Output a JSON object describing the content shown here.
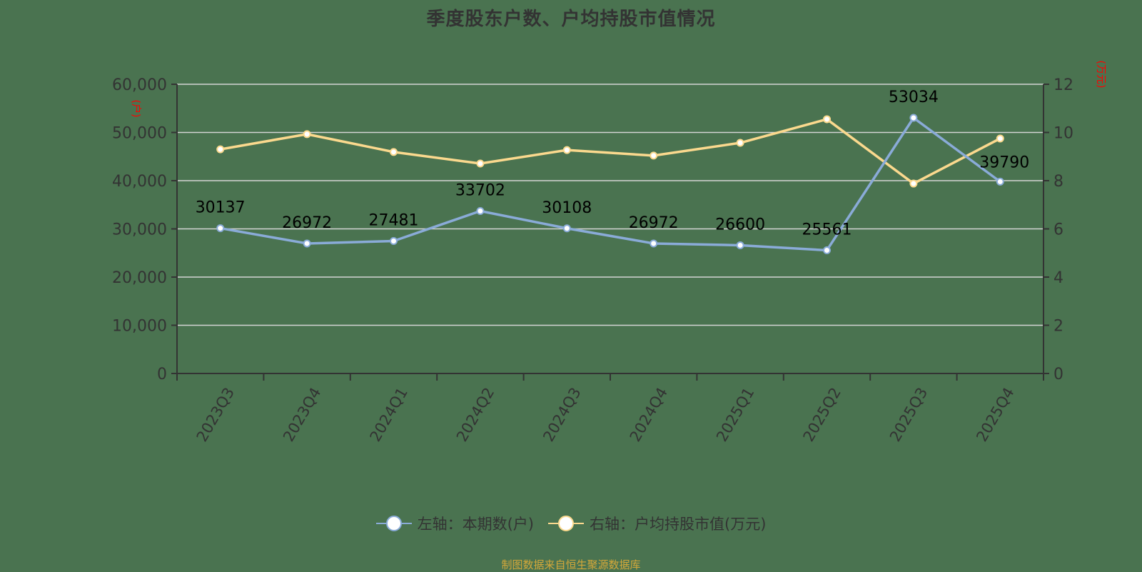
{
  "title": "季度股东户数、户均持股市值情况",
  "colors": {
    "background": "#4a7350",
    "series_left": "#8aabd8",
    "series_right": "#fbd98e",
    "axis": "#333333",
    "grid": "#d4d4d4",
    "unit_label": "#ff0000",
    "footer": "#d4a83a"
  },
  "legend": {
    "left": "左轴：本期数(户)",
    "right": "右轴：户均持股市值(万元)"
  },
  "axis_units": {
    "left": "(户)",
    "right": "(万元)"
  },
  "footer": "制图数据来自恒生聚源数据库",
  "chart_data": {
    "type": "line",
    "title": "季度股东户数、户均持股市值情况",
    "categories": [
      "2023Q3",
      "2023Q4",
      "2024Q1",
      "2024Q2",
      "2024Q3",
      "2024Q4",
      "2025Q1",
      "2025Q2",
      "2025Q3",
      "2025Q4"
    ],
    "series": [
      {
        "name": "左轴：本期数(户)",
        "axis": "left",
        "values": [
          30137,
          26972,
          27481,
          33702,
          30108,
          26972,
          26600,
          25561,
          53034,
          39790
        ],
        "data_labels": true
      },
      {
        "name": "右轴：户均持股市值(万元)",
        "axis": "right",
        "values": [
          9.3,
          9.93,
          9.19,
          8.71,
          9.27,
          9.04,
          9.57,
          10.55,
          7.88,
          9.75
        ],
        "data_labels": false
      }
    ],
    "y_left": {
      "min": 0,
      "max": 60000,
      "ticks": [
        "0",
        "10,000",
        "20,000",
        "30,000",
        "40,000",
        "50,000",
        "60,000"
      ],
      "unit": "(户)"
    },
    "y_right": {
      "min": 0,
      "max": 12,
      "ticks": [
        "0",
        "2",
        "4",
        "6",
        "8",
        "10",
        "12"
      ],
      "unit": "(万元)"
    },
    "xlabel": "",
    "grid": true,
    "legend_position": "bottom"
  }
}
